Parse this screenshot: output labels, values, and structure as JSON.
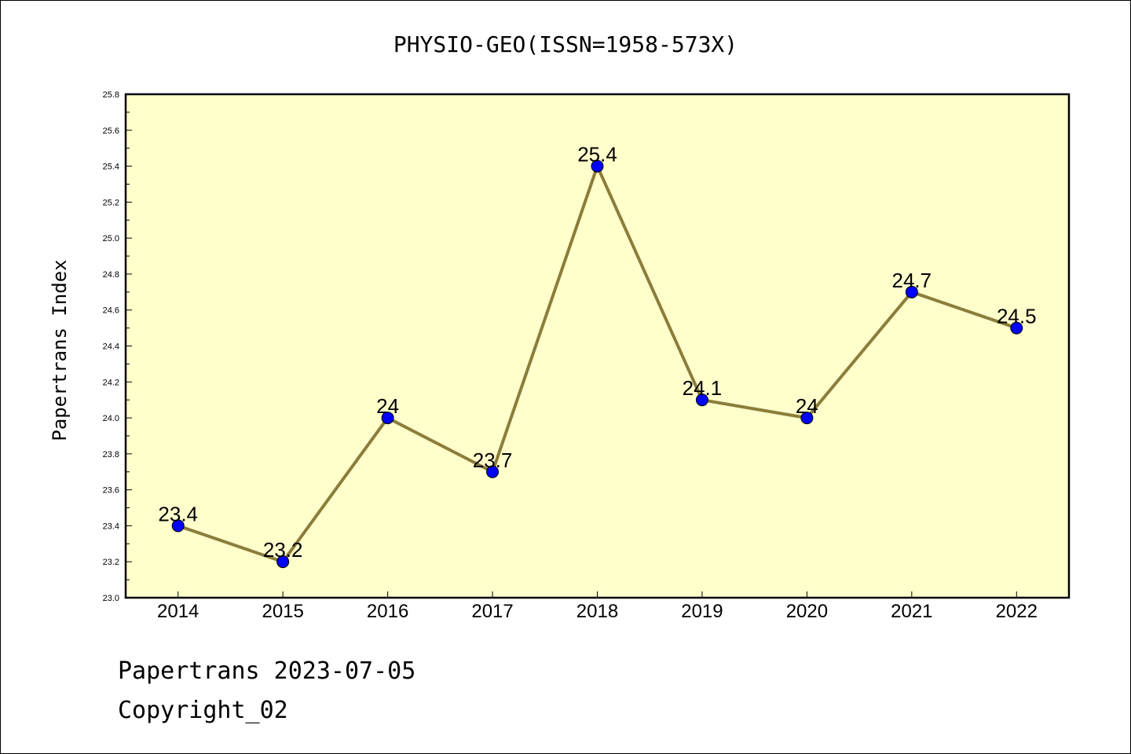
{
  "footer": {
    "line1": "Papertrans 2023-07-05",
    "line2": "Copyright_02"
  },
  "chart_data": {
    "type": "line",
    "title": "PHYSIO-GEO(ISSN=1958-573X)",
    "xlabel": "",
    "ylabel": "Papertrans Index",
    "categories": [
      "2014",
      "2015",
      "2016",
      "2017",
      "2018",
      "2019",
      "2020",
      "2021",
      "2022"
    ],
    "series": [
      {
        "values": [
          23.4,
          23.2,
          24,
          23.7,
          25.4,
          24.1,
          24,
          24.7,
          24.5
        ],
        "labels": [
          "23.4",
          "23.2",
          "24",
          "23.7",
          "25.4",
          "24.1",
          "24",
          "24.7",
          "24.5"
        ]
      }
    ],
    "ylim": [
      23.0,
      25.8
    ],
    "yticks": [
      "23.0",
      "23.2",
      "23.4",
      "23.6",
      "23.8",
      "24.0",
      "24.2",
      "24.4",
      "24.6",
      "24.8",
      "25.0",
      "25.2",
      "25.4",
      "25.6",
      "25.8"
    ],
    "grid": false,
    "colors": {
      "plot_background": "#ffffcc",
      "line": "#8b7d3a",
      "marker": "#0000ff"
    }
  }
}
